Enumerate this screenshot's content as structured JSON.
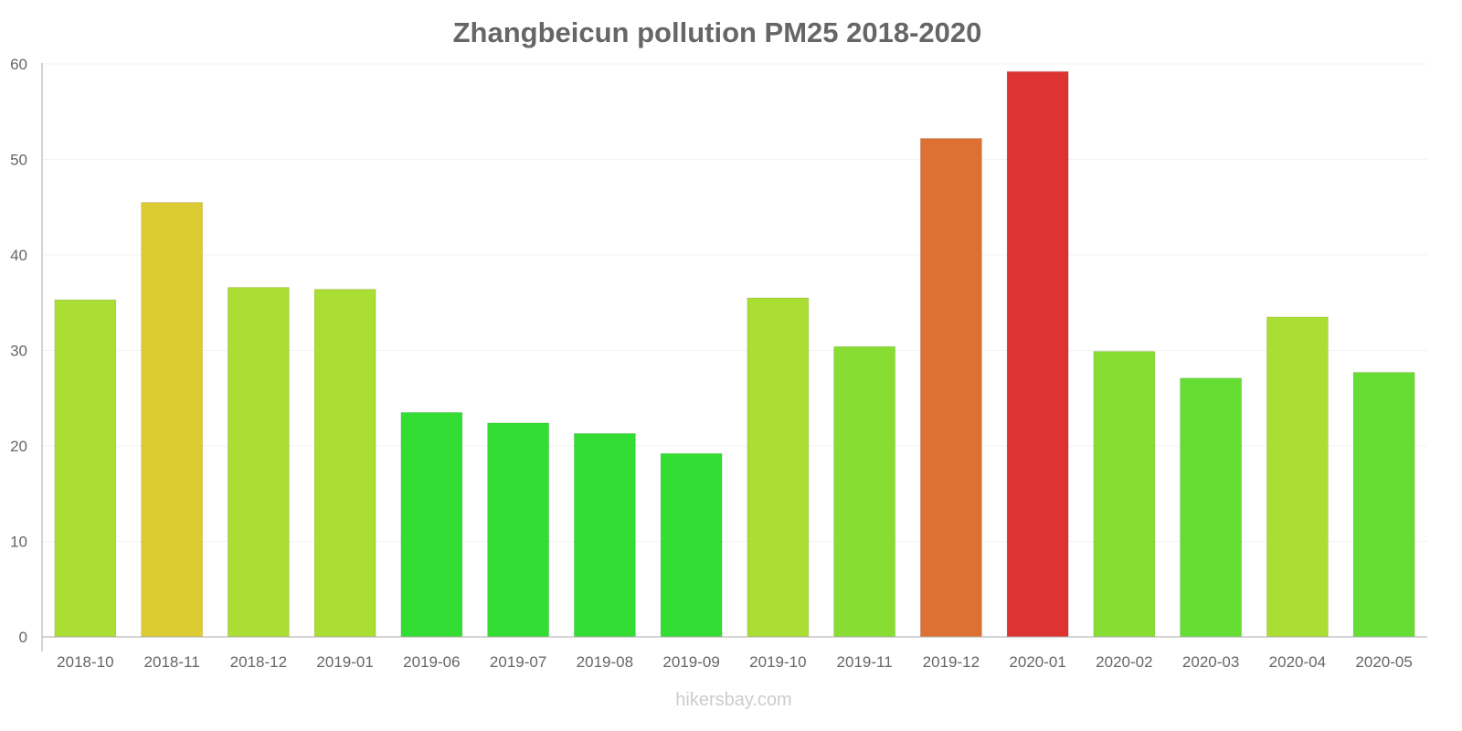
{
  "chart_data": {
    "type": "bar",
    "title": "Zhangbeicun pollution PM25 2018-2020",
    "xlabel": "",
    "ylabel": "",
    "ylim": [
      0,
      60
    ],
    "yticks": [
      "0",
      "10",
      "20",
      "30",
      "40",
      "50",
      "60"
    ],
    "grid": true,
    "categories": [
      "2018-10",
      "2018-11",
      "2018-12",
      "2019-01",
      "2019-06",
      "2019-07",
      "2019-08",
      "2019-09",
      "2019-10",
      "2019-11",
      "2019-12",
      "2020-01",
      "2020-02",
      "2020-03",
      "2020-04",
      "2020-05"
    ],
    "values": [
      35.3,
      45.5,
      36.6,
      36.4,
      23.5,
      22.4,
      21.3,
      19.2,
      35.5,
      30.4,
      52.2,
      59.2,
      29.9,
      27.1,
      33.5,
      27.7
    ],
    "colors": [
      "#aade33",
      "#dccb33",
      "#aade33",
      "#aade33",
      "#33dd33",
      "#33dd33",
      "#33dd33",
      "#33dd33",
      "#aade33",
      "#88dd33",
      "#dd7033",
      "#dd3333",
      "#88dd33",
      "#66dd33",
      "#aade33",
      "#66dd33"
    ]
  },
  "watermark": "hikersbay.com"
}
